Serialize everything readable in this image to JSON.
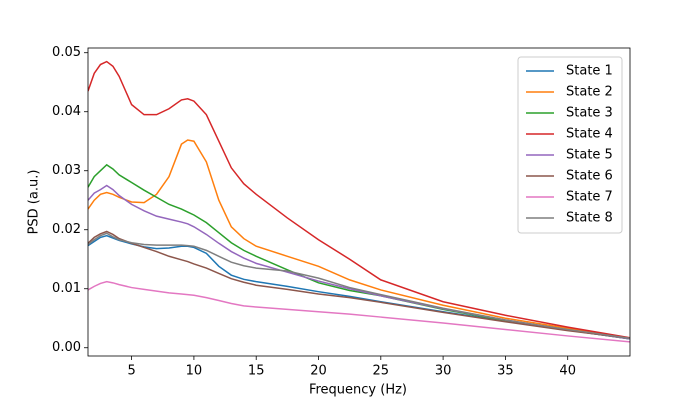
{
  "chart_data": {
    "type": "line",
    "x_label": "Frequency (Hz)",
    "y_label": "PSD (a.u.)",
    "x": [
      1.5,
      2,
      2.5,
      3,
      3.5,
      4,
      5,
      6,
      7,
      8,
      9,
      9.5,
      10,
      11,
      12,
      13,
      14,
      15,
      17.5,
      20,
      22.5,
      25,
      30,
      35,
      40,
      45
    ],
    "xlim": [
      1.5,
      45
    ],
    "xticks": [
      5,
      10,
      15,
      20,
      25,
      30,
      35,
      40
    ],
    "ylim": [
      -0.0014,
      0.0508
    ],
    "yticks": [
      {
        "value": 0,
        "label": "0.00"
      },
      0.01,
      0.02,
      0.03,
      0.04,
      0.05
    ],
    "legend": "upper right",
    "series": [
      {
        "name": "State 1",
        "color": "#1f77b4",
        "values": [
          0.0173,
          0.018,
          0.0187,
          0.019,
          0.0186,
          0.0182,
          0.0176,
          0.0171,
          0.0168,
          0.0169,
          0.0172,
          0.0172,
          0.017,
          0.016,
          0.0138,
          0.0123,
          0.0116,
          0.0112,
          0.0104,
          0.0095,
          0.0087,
          0.0078,
          0.0061,
          0.0045,
          0.003,
          0.0015
        ]
      },
      {
        "name": "State 2",
        "color": "#ff7f0e",
        "values": [
          0.0235,
          0.025,
          0.026,
          0.0263,
          0.026,
          0.0255,
          0.0247,
          0.0246,
          0.026,
          0.029,
          0.0345,
          0.0352,
          0.035,
          0.0315,
          0.025,
          0.0205,
          0.0185,
          0.0172,
          0.0155,
          0.0138,
          0.0115,
          0.0098,
          0.0072,
          0.005,
          0.0033,
          0.0016
        ]
      },
      {
        "name": "State 3",
        "color": "#2ca02c",
        "values": [
          0.0272,
          0.029,
          0.03,
          0.031,
          0.0303,
          0.0293,
          0.028,
          0.0267,
          0.0255,
          0.0243,
          0.0235,
          0.023,
          0.0225,
          0.0212,
          0.0195,
          0.0178,
          0.0165,
          0.0155,
          0.0132,
          0.011,
          0.0097,
          0.0088,
          0.0065,
          0.0046,
          0.003,
          0.0015
        ]
      },
      {
        "name": "State 4",
        "color": "#d62728",
        "values": [
          0.0435,
          0.0465,
          0.048,
          0.0485,
          0.0477,
          0.046,
          0.0412,
          0.0395,
          0.0395,
          0.0405,
          0.042,
          0.0422,
          0.0418,
          0.0395,
          0.035,
          0.0305,
          0.0278,
          0.026,
          0.022,
          0.0183,
          0.015,
          0.0115,
          0.0078,
          0.0055,
          0.0035,
          0.0017
        ]
      },
      {
        "name": "State 5",
        "color": "#9467bd",
        "values": [
          0.025,
          0.0262,
          0.0268,
          0.0275,
          0.0268,
          0.0258,
          0.0243,
          0.0232,
          0.0223,
          0.0218,
          0.0213,
          0.021,
          0.0205,
          0.0192,
          0.0177,
          0.0163,
          0.0152,
          0.0143,
          0.0128,
          0.0113,
          0.01,
          0.0088,
          0.0066,
          0.0047,
          0.003,
          0.0015
        ]
      },
      {
        "name": "State 6",
        "color": "#8c564b",
        "values": [
          0.0177,
          0.0187,
          0.0193,
          0.0197,
          0.0192,
          0.0185,
          0.0177,
          0.017,
          0.0163,
          0.0155,
          0.0149,
          0.0146,
          0.0142,
          0.0135,
          0.0126,
          0.0117,
          0.0111,
          0.0106,
          0.0099,
          0.0091,
          0.0085,
          0.0077,
          0.006,
          0.0044,
          0.0029,
          0.0016
        ]
      },
      {
        "name": "State 7",
        "color": "#e377c2",
        "values": [
          0.0098,
          0.0104,
          0.0109,
          0.0112,
          0.011,
          0.0107,
          0.0102,
          0.0099,
          0.0096,
          0.0093,
          0.0091,
          0.009,
          0.0089,
          0.0085,
          0.008,
          0.0075,
          0.0071,
          0.0069,
          0.0065,
          0.0061,
          0.0057,
          0.0052,
          0.0042,
          0.0031,
          0.002,
          0.001
        ]
      },
      {
        "name": "State 8",
        "color": "#7f7f7f",
        "values": [
          0.0175,
          0.0183,
          0.019,
          0.0194,
          0.0188,
          0.0183,
          0.0178,
          0.0175,
          0.0174,
          0.0174,
          0.0174,
          0.0173,
          0.0172,
          0.0165,
          0.0155,
          0.0145,
          0.0139,
          0.0135,
          0.013,
          0.0118,
          0.0102,
          0.009,
          0.0067,
          0.0047,
          0.0031,
          0.0016
        ]
      }
    ]
  }
}
